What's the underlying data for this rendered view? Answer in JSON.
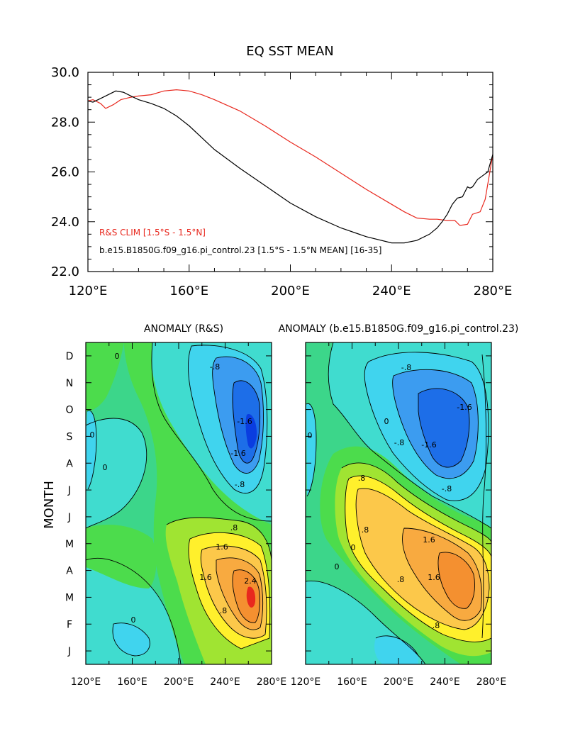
{
  "top_chart": {
    "title": "EQ SST MEAN",
    "legend_red": "R&S CLIM [1.5°S - 1.5°N]",
    "legend_black": "b.e15.B1850G.f09_g16.pi_control.23 [1.5°S - 1.5°N MEAN] [16-35]"
  },
  "left_panel": {
    "title": "ANOMALY (R&S)"
  },
  "right_panel": {
    "title": "ANOMALY (b.e15.B1850G.f09_g16.pi_control.23)"
  },
  "shared": {
    "ylabel": "MONTH"
  },
  "chart_data": [
    {
      "type": "line",
      "title": "EQ SST MEAN",
      "xlabel": "",
      "ylabel": "",
      "xlim": [
        120,
        280
      ],
      "ylim": [
        22.0,
        30.0
      ],
      "x_ticks": [
        "120°E",
        "160°E",
        "200°E",
        "240°E",
        "280°E"
      ],
      "x_tick_values": [
        120,
        160,
        200,
        240,
        280
      ],
      "y_ticks": [
        "22.0",
        "24.0",
        "26.0",
        "28.0",
        "30.0"
      ],
      "y_tick_values": [
        22,
        24,
        26,
        28,
        30
      ],
      "legend_position": "bottom-left",
      "series": [
        {
          "name": "R&S CLIM [1.5°S - 1.5°N]",
          "color": "#e8281e",
          "x": [
            120,
            122,
            125,
            127,
            130,
            133,
            137,
            140,
            145,
            150,
            155,
            160,
            165,
            170,
            180,
            190,
            200,
            210,
            220,
            230,
            240,
            245,
            250,
            255,
            258,
            262,
            265,
            267,
            270,
            272,
            275,
            277,
            280
          ],
          "y": [
            28.85,
            28.9,
            28.75,
            28.55,
            28.7,
            28.9,
            29.0,
            29.05,
            29.1,
            29.25,
            29.3,
            29.25,
            29.1,
            28.9,
            28.45,
            27.85,
            27.2,
            26.6,
            25.95,
            25.3,
            24.7,
            24.4,
            24.15,
            24.1,
            24.1,
            24.05,
            24.05,
            23.85,
            23.9,
            24.3,
            24.4,
            24.9,
            26.7
          ]
        },
        {
          "name": "b.e15.B1850G.f09_g16.pi_control.23 [1.5°S - 1.5°N MEAN] [16-35]",
          "color": "#000000",
          "x": [
            120,
            122,
            125,
            128,
            131,
            134,
            137,
            140,
            145,
            150,
            155,
            160,
            170,
            180,
            190,
            200,
            210,
            220,
            230,
            240,
            245,
            250,
            255,
            258,
            260,
            262,
            264,
            266,
            268,
            270,
            271,
            272,
            274,
            276,
            278,
            280
          ],
          "y": [
            28.85,
            28.8,
            28.95,
            29.1,
            29.25,
            29.2,
            29.05,
            28.9,
            28.75,
            28.55,
            28.25,
            27.85,
            26.9,
            26.15,
            25.45,
            24.75,
            24.2,
            23.75,
            23.4,
            23.15,
            23.15,
            23.25,
            23.5,
            23.75,
            24.0,
            24.3,
            24.7,
            24.95,
            25.0,
            25.4,
            25.35,
            25.4,
            25.7,
            25.85,
            26.0,
            26.7
          ]
        }
      ]
    },
    {
      "type": "heatmap",
      "title": "ANOMALY (R&S)",
      "ylabel": "MONTH",
      "x_ticks": [
        "120°E",
        "160°E",
        "200°E",
        "240°E",
        "280°E"
      ],
      "y_ticks": [
        "J",
        "F",
        "M",
        "A",
        "M",
        "J",
        "J",
        "A",
        "S",
        "O",
        "N",
        "D"
      ],
      "contour_labels": [
        "-.8",
        "-1.6",
        "-1.6",
        "-.8",
        ".8",
        "1.6",
        "2.4",
        "1.6",
        ".8",
        "0",
        "0",
        "0",
        "0"
      ],
      "features": {
        "warm_peak": {
          "lon": 264,
          "month": "M",
          "value": 2.6
        },
        "cold_peak": {
          "lon": 264,
          "month": "S",
          "value": -2.2
        }
      }
    },
    {
      "type": "heatmap",
      "title": "ANOMALY (b.e15.B1850G.f09_g16.pi_control.23)",
      "x_ticks": [
        "120°E",
        "160°E",
        "200°E",
        "240°E",
        "280°E"
      ],
      "y_ticks": [
        "J",
        "F",
        "M",
        "A",
        "M",
        "J",
        "J",
        "A",
        "S",
        "O",
        "N",
        "D"
      ],
      "contour_labels": [
        "-.8",
        "-1.6",
        "-1.6",
        "-.8",
        "-.8",
        ".8",
        ".8",
        "1.6",
        "1.6",
        ".8",
        ".8",
        "0",
        "0",
        "0",
        "0"
      ],
      "features": {
        "warm_peak": {
          "lon": 255,
          "month": "A",
          "value": 1.9
        },
        "cold_peak": {
          "lon": 248,
          "month": "S",
          "value": -1.9
        }
      }
    }
  ],
  "colors": {
    "c_m24": "#0a3de0",
    "c_m16": "#1d6ee8",
    "c_m08": "#3c9cf0",
    "c_m00": "#40d4ee",
    "c_neg": "#40dccf",
    "c_zero": "#3cd68a",
    "c_p0": "#4cdc4c",
    "c_p04": "#a0e432",
    "c_p08": "#fff02c",
    "c_p12": "#fcc84a",
    "c_p16": "#f8aa40",
    "c_p20": "#f49030",
    "c_p24": "#e8281e"
  }
}
